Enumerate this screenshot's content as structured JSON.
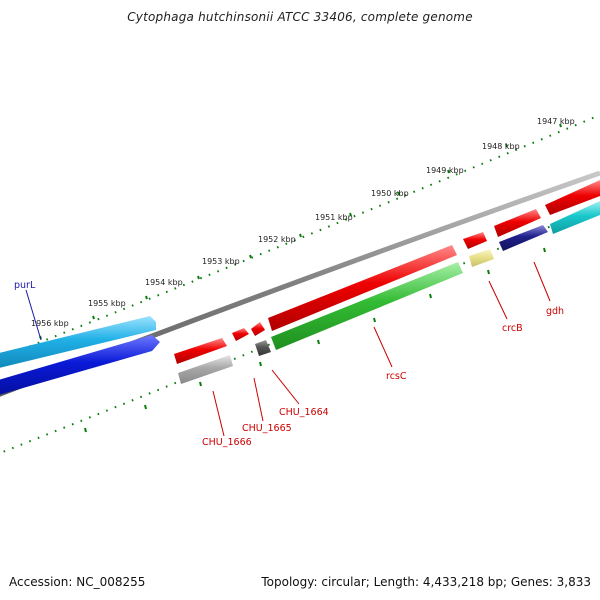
{
  "title": "Cytophaga hutchinsonii ATCC 33406, complete genome",
  "footer": {
    "accession": "Accession: NC_008255",
    "summary": "Topology: circular; Length: 4,433,218 bp; Genes: 3,833"
  },
  "colors": {
    "backbone": "#7f7f7f",
    "tick": "#0a7d0a",
    "label_red": "#cc0000",
    "label_blue": "#1a1aa8",
    "cds_red": "#e60000",
    "cds_green": "#33bb33",
    "cds_cyan": "#19c8cc",
    "cds_sky": "#1fb0e6",
    "cds_blue": "#0a1ad6",
    "cds_grey": "#a8a8a8",
    "cds_dark": "#555555",
    "cds_yellow": "#e8e08a",
    "cds_navy": "#1f1f8a"
  },
  "ruler_labels": [
    "1947 kbp",
    "1948 kbp",
    "1949 kbp",
    "1950 kbp",
    "1951 kbp",
    "1952 kbp",
    "1953 kbp",
    "1954 kbp",
    "1955 kbp",
    "1956 kbp"
  ],
  "gene_labels": [
    {
      "name": "purL",
      "color": "label_blue"
    },
    {
      "name": "CHU_1666",
      "color": "label_red"
    },
    {
      "name": "CHU_1665",
      "color": "label_red"
    },
    {
      "name": "CHU_1664",
      "color": "label_red"
    },
    {
      "name": "rcsC",
      "color": "label_red"
    },
    {
      "name": "crcB",
      "color": "label_red"
    },
    {
      "name": "gdh",
      "color": "label_red"
    }
  ]
}
